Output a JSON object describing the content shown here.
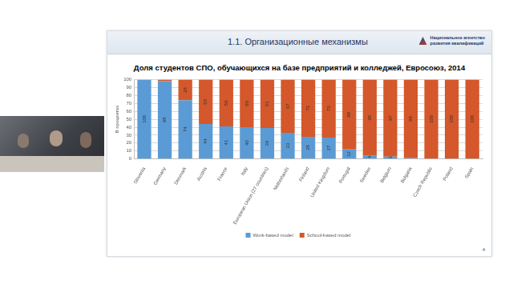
{
  "slide": {
    "heading": "1.1. Организационные механизмы",
    "logo": [
      "Национальное агентство",
      "развития квалификаций"
    ],
    "page": "4"
  },
  "chart_data": {
    "type": "bar",
    "stacked": true,
    "title": "Доля студентов СПО, обучающихся на базе предприятий и колледжей, Евросоюз, 2014",
    "y_label": "В процентах",
    "categories": [
      "Slovenia",
      "Germany",
      "Denmark",
      "Austria",
      "France",
      "Italy",
      "European Union (27 countries)",
      "Netherlands",
      "Finland",
      "United Kingdom",
      "Portugal",
      "Sweden",
      "Belgium",
      "Bulgaria",
      "Czech Republic",
      "Poland",
      "Spain"
    ],
    "series": [
      {
        "name": "Work-based model",
        "color": "#5b9bd5",
        "values": [
          100,
          98,
          74,
          44,
          41,
          40,
          39,
          33,
          28,
          27,
          12,
          4,
          3,
          1,
          0,
          0,
          0
        ],
        "value_labels": [
          "100",
          "98",
          "74",
          "44",
          "41",
          "40",
          "39",
          "33",
          "28",
          "27",
          "12",
          "4",
          "3",
          null,
          null,
          null,
          null
        ]
      },
      {
        "name": "School-based model",
        "color": "#d4582b",
        "values": [
          0,
          2,
          26,
          56,
          59,
          60,
          61,
          67,
          72,
          73,
          88,
          96,
          97,
          99,
          100,
          100,
          100
        ],
        "value_labels": [
          null,
          null,
          "26",
          "56",
          "59",
          "60",
          "61",
          "67",
          "72",
          "73",
          "88",
          "96",
          "97",
          "99",
          "100",
          "100",
          "100"
        ]
      }
    ],
    "ylim": [
      0,
      100
    ],
    "yticks": [
      0,
      10,
      20,
      30,
      40,
      50,
      60,
      70,
      80,
      90,
      100
    ],
    "grid": true,
    "legend": "bottom",
    "data_labels": true
  }
}
